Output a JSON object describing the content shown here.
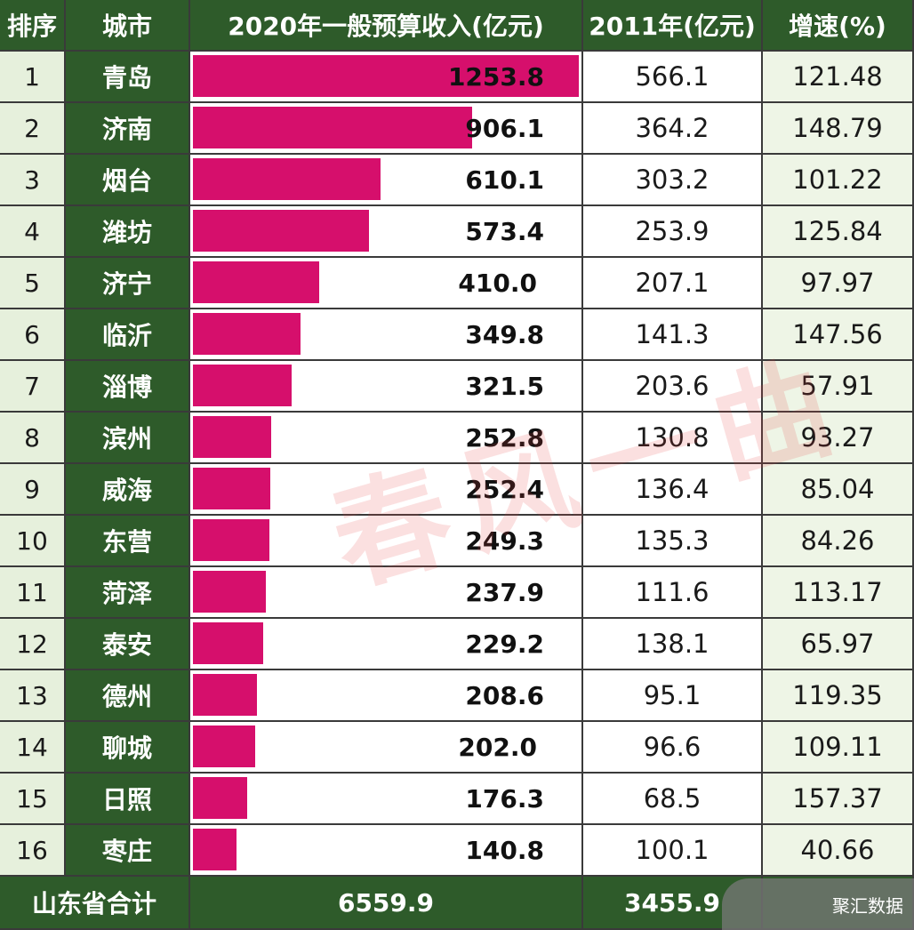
{
  "headers": {
    "rank": "排序",
    "city": "城市",
    "revenue_2020": "2020年一般预算收入(亿元)",
    "revenue_2011": "2011年(亿元)",
    "growth": "增速(%)"
  },
  "footer": {
    "label": "山东省合计",
    "total_2020": "6559.9",
    "total_2011": "3455.9"
  },
  "watermark": "春风一曲",
  "logo_text": "聚汇数据",
  "colors": {
    "bar": "#d60f6c",
    "header_bg": "#2e5b2a",
    "rank_bg": "#e6f0dc"
  },
  "chart_data": {
    "type": "table",
    "bar_column": "revenue_2020",
    "bar_max": 1253.8,
    "rows": [
      {
        "rank": "1",
        "city": "青岛",
        "revenue_2020": 1253.8,
        "revenue_2011": "566.1",
        "growth": "121.48"
      },
      {
        "rank": "2",
        "city": "济南",
        "revenue_2020": 906.1,
        "revenue_2011": "364.2",
        "growth": "148.79"
      },
      {
        "rank": "3",
        "city": "烟台",
        "revenue_2020": 610.1,
        "revenue_2011": "303.2",
        "growth": "101.22"
      },
      {
        "rank": "4",
        "city": "潍坊",
        "revenue_2020": 573.4,
        "revenue_2011": "253.9",
        "growth": "125.84"
      },
      {
        "rank": "5",
        "city": "济宁",
        "revenue_2020": 410.0,
        "revenue_2011": "207.1",
        "growth": "97.97"
      },
      {
        "rank": "6",
        "city": "临沂",
        "revenue_2020": 349.8,
        "revenue_2011": "141.3",
        "growth": "147.56"
      },
      {
        "rank": "7",
        "city": "淄博",
        "revenue_2020": 321.5,
        "revenue_2011": "203.6",
        "growth": "57.91"
      },
      {
        "rank": "8",
        "city": "滨州",
        "revenue_2020": 252.8,
        "revenue_2011": "130.8",
        "growth": "93.27"
      },
      {
        "rank": "9",
        "city": "威海",
        "revenue_2020": 252.4,
        "revenue_2011": "136.4",
        "growth": "85.04"
      },
      {
        "rank": "10",
        "city": "东营",
        "revenue_2020": 249.3,
        "revenue_2011": "135.3",
        "growth": "84.26"
      },
      {
        "rank": "11",
        "city": "菏泽",
        "revenue_2020": 237.9,
        "revenue_2011": "111.6",
        "growth": "113.17"
      },
      {
        "rank": "12",
        "city": "泰安",
        "revenue_2020": 229.2,
        "revenue_2011": "138.1",
        "growth": "65.97"
      },
      {
        "rank": "13",
        "city": "德州",
        "revenue_2020": 208.6,
        "revenue_2011": "95.1",
        "growth": "119.35"
      },
      {
        "rank": "14",
        "city": "聊城",
        "revenue_2020": 202.0,
        "revenue_2011": "96.6",
        "growth": "109.11"
      },
      {
        "rank": "15",
        "city": "日照",
        "revenue_2020": 176.3,
        "revenue_2011": "68.5",
        "growth": "157.37"
      },
      {
        "rank": "16",
        "city": "枣庄",
        "revenue_2020": 140.8,
        "revenue_2011": "100.1",
        "growth": "40.66"
      }
    ]
  }
}
